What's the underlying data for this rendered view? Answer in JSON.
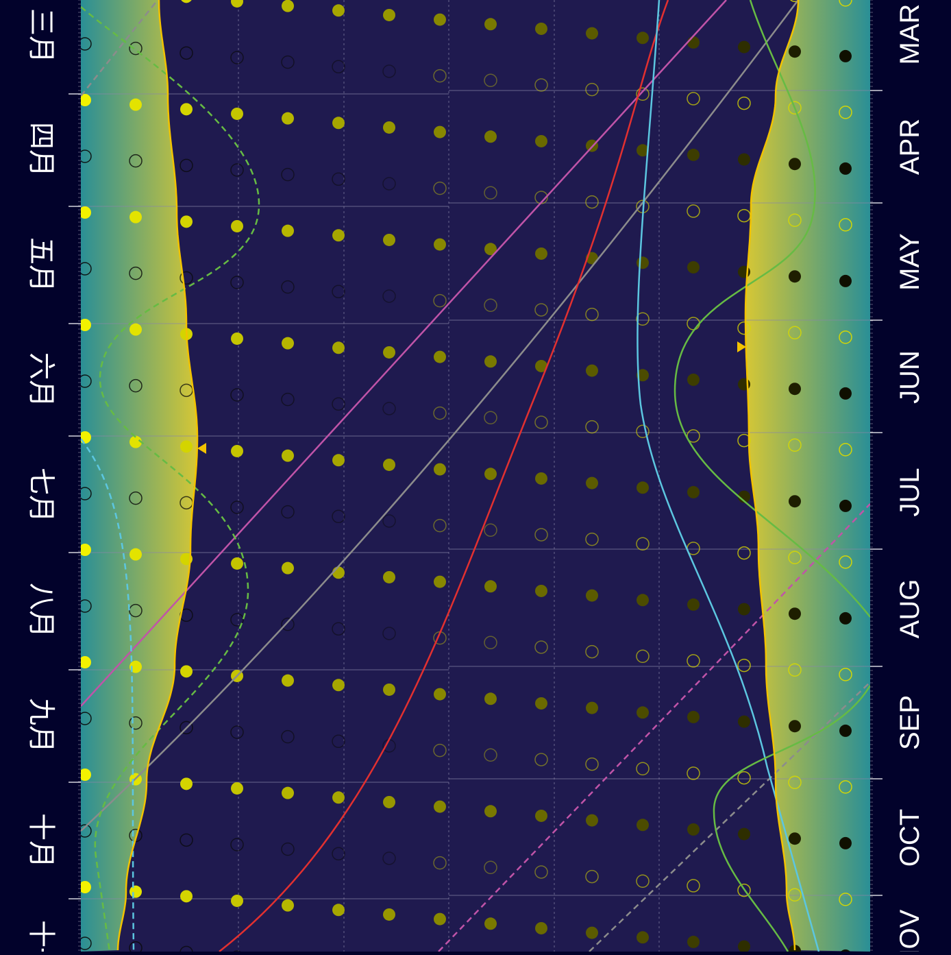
{
  "chart_data": {
    "type": "astronomical-year-chart",
    "title": "",
    "months_left": [
      "三月",
      "四月",
      "五月",
      "六月",
      "七月",
      "八月",
      "九月",
      "十月",
      "十一"
    ],
    "months_right": [
      "MAR",
      "APR",
      "MAY",
      "JUN",
      "JUL",
      "AUG",
      "SEP",
      "OCT",
      "NOV"
    ],
    "grid": true,
    "colors": {
      "background": "#02022b",
      "night": "#1f1a4f",
      "twilight_light": "#2a8f96",
      "twilight_dark": "#c9c43a",
      "sunset_line": "#f2c200",
      "moon_filled": "#f2f200",
      "moon_ring": "#f2f200",
      "planet_red": "#e23030",
      "planet_magenta": "#c054a8",
      "planet_grey": "#8c8c8c",
      "planet_cyan": "#5cc6e0",
      "planet_green": "#66bb44",
      "marker": "#f2c200"
    },
    "icons": [
      "sunset-marker-icon",
      "sunrise-marker-icon"
    ]
  }
}
